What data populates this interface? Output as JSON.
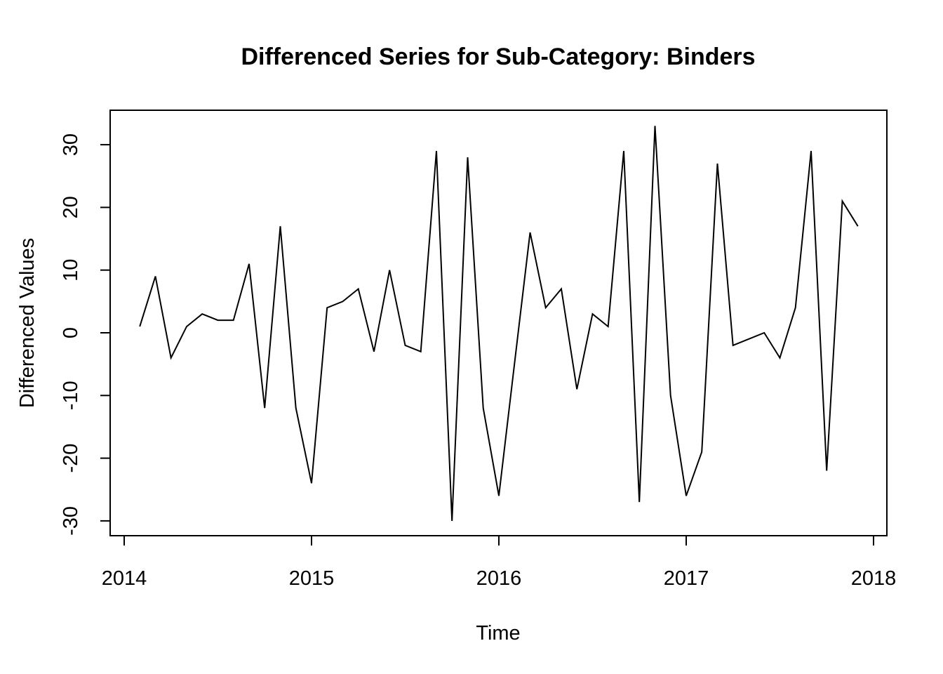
{
  "chart_data": {
    "type": "line",
    "title": "Differenced Series for Sub-Category: Binders",
    "xlabel": "Time",
    "ylabel": "Differenced Values",
    "xlim": [
      2014,
      2018
    ],
    "ylim": [
      -30,
      33
    ],
    "x_ticks": [
      2014,
      2015,
      2016,
      2017,
      2018
    ],
    "y_ticks": [
      -30,
      -20,
      -10,
      0,
      10,
      20,
      30
    ],
    "x_tick_labels": [
      "2014",
      "2015",
      "2016",
      "2017",
      "2018"
    ],
    "y_tick_labels": [
      "-30",
      "-20",
      "-10",
      "0",
      "10",
      "20",
      "30"
    ],
    "grid": false,
    "legend": "none",
    "line_color": "#000000",
    "x_start": 2014.0833,
    "x_step": 0.08333,
    "values": [
      1,
      9,
      -4,
      1,
      3,
      2,
      2,
      11,
      -12,
      17,
      -12,
      -24,
      4,
      5,
      7,
      -3,
      10,
      -2,
      -3,
      29,
      -30,
      28,
      -12,
      -26,
      -5,
      16,
      4,
      7,
      -9,
      3,
      1,
      29,
      -27,
      33,
      -10,
      -26,
      -19,
      27,
      -2,
      -1,
      0,
      -4,
      4,
      29,
      -22,
      21,
      17
    ]
  }
}
